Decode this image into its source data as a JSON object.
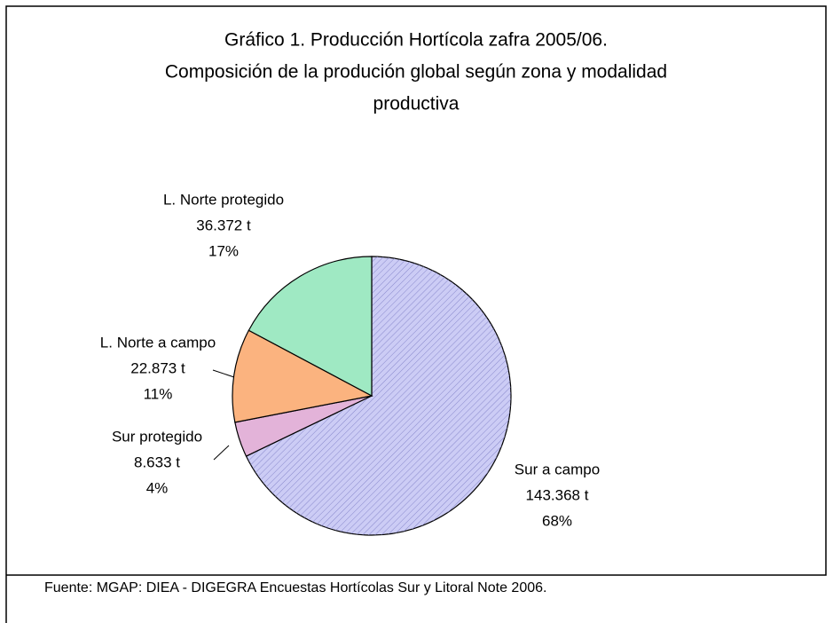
{
  "chart_data": {
    "type": "pie",
    "title": [
      "Gráfico 1. Producción Hortícola zafra 2005/06.",
      "Composición de la produción global según zona y modalidad",
      "productiva"
    ],
    "categories": [
      "Sur a campo",
      "Sur protegido",
      "L. Norte a campo",
      "L. Norte protegido"
    ],
    "values": [
      143368,
      8633,
      22873,
      36372
    ],
    "value_labels": [
      "143.368 t",
      "8.633 t",
      "22.873 t",
      "36.372 t"
    ],
    "percents": [
      68,
      4,
      11,
      17
    ],
    "percent_labels": [
      "68%",
      "4%",
      "11%",
      "17%"
    ],
    "colors": [
      "#ccccf5",
      "#e3b3d9",
      "#fbb37f",
      "#9fe9c3"
    ],
    "source": "Fuente: MGAP: DIEA - DIGEGRA Encuestas Hortícolas Sur y Litoral Note 2006."
  }
}
